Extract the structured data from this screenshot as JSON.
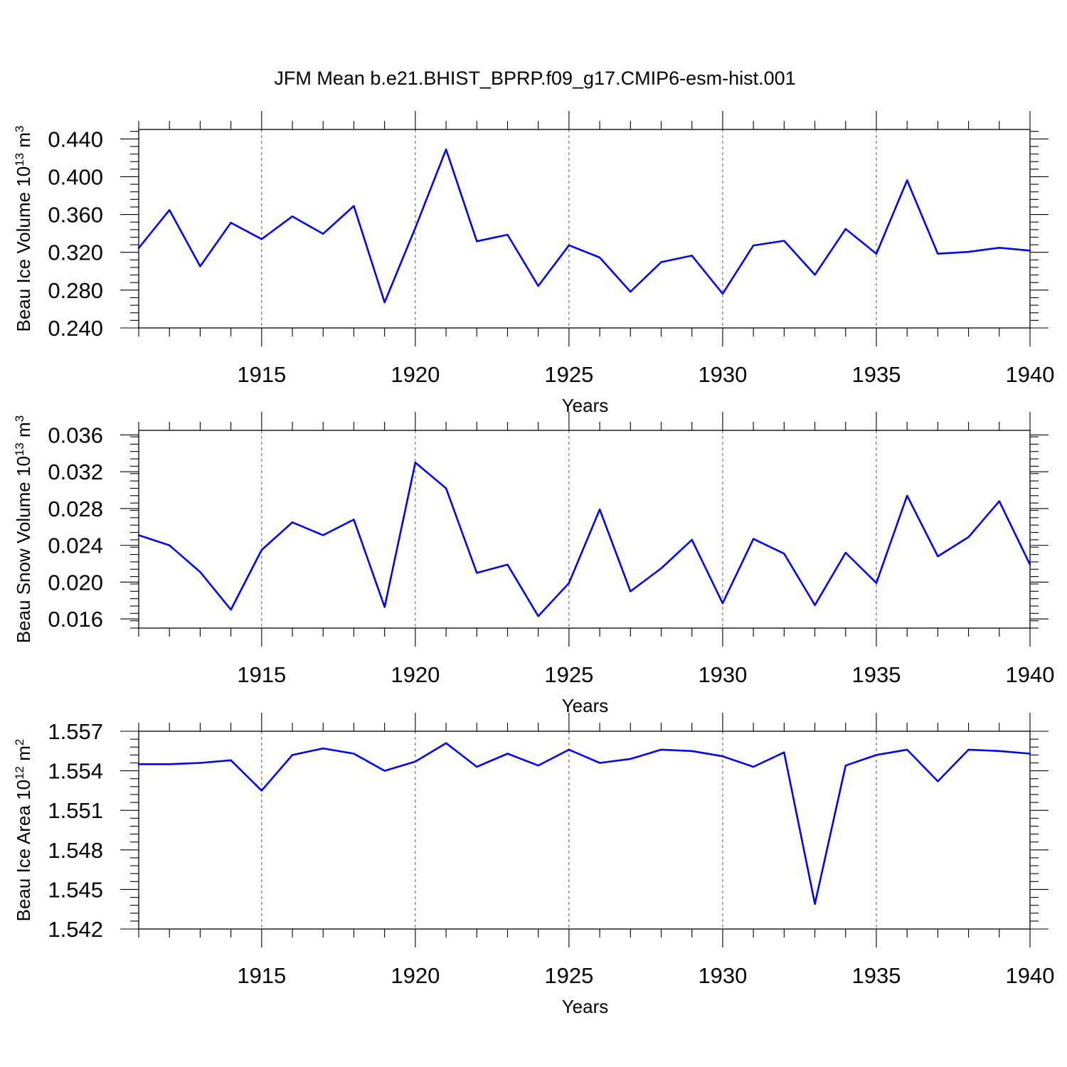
{
  "figure": {
    "title": "JFM Mean b.e21.BHIST_BPRP.f09_g17.CMIP6-esm-hist.001"
  },
  "style": {
    "line_color": "#0000ff"
  },
  "chart_data": [
    {
      "type": "line",
      "xlabel": "Years",
      "ylabel_parts": [
        "Beau Ice Volume 10",
        "13",
        " m",
        "3"
      ],
      "x": [
        1911,
        1912,
        1913,
        1914,
        1915,
        1916,
        1917,
        1918,
        1919,
        1920,
        1921,
        1922,
        1923,
        1924,
        1925,
        1926,
        1927,
        1928,
        1929,
        1930,
        1931,
        1932,
        1933,
        1934,
        1935,
        1936,
        1937,
        1938,
        1939,
        1940
      ],
      "y": [
        0.3245,
        0.3648,
        0.3052,
        0.3513,
        0.3339,
        0.358,
        0.3396,
        0.369,
        0.267,
        0.346,
        0.4289,
        0.3317,
        0.3386,
        0.2844,
        0.3275,
        0.3145,
        0.2783,
        0.3096,
        0.3165,
        0.2762,
        0.3272,
        0.3322,
        0.2962,
        0.3447,
        0.3184,
        0.3962,
        0.3185,
        0.3205,
        0.3248,
        0.3218
      ],
      "xlim": [
        1911,
        1940
      ],
      "ylim": [
        0.24,
        0.45
      ],
      "x_ticks": [
        1915,
        1920,
        1925,
        1930,
        1935,
        1940
      ],
      "x_tick_labels": [
        "1915",
        "1920",
        "1925",
        "1930",
        "1935",
        "1940"
      ],
      "x_minor": [
        1911,
        1912,
        1913,
        1914,
        1916,
        1917,
        1918,
        1919,
        1921,
        1922,
        1923,
        1924,
        1926,
        1927,
        1928,
        1929,
        1931,
        1932,
        1933,
        1934,
        1936,
        1937,
        1938,
        1939
      ],
      "y_ticks": [
        0.24,
        0.28,
        0.32,
        0.36,
        0.4,
        0.44
      ],
      "y_tick_labels": [
        "0.240",
        "0.280",
        "0.320",
        "0.360",
        "0.400",
        "0.440"
      ],
      "y_minor_step": 0.008,
      "grid_x": "dashed at major ticks"
    },
    {
      "type": "line",
      "xlabel": "Years",
      "ylabel_parts": [
        "Beau Snow Volume 10",
        "13",
        " m",
        "3"
      ],
      "x": [
        1911,
        1912,
        1913,
        1914,
        1915,
        1916,
        1917,
        1918,
        1919,
        1920,
        1921,
        1922,
        1923,
        1924,
        1925,
        1926,
        1927,
        1928,
        1929,
        1930,
        1931,
        1932,
        1933,
        1934,
        1935,
        1936,
        1937,
        1938,
        1939,
        1940
      ],
      "y": [
        0.0251,
        0.024,
        0.0211,
        0.017,
        0.0235,
        0.0265,
        0.0251,
        0.0268,
        0.0173,
        0.033,
        0.0302,
        0.021,
        0.0219,
        0.0163,
        0.0199,
        0.0279,
        0.019,
        0.0215,
        0.0246,
        0.0177,
        0.0247,
        0.0231,
        0.0175,
        0.0232,
        0.0199,
        0.0294,
        0.0228,
        0.0249,
        0.0288,
        0.0219
      ],
      "xlim": [
        1911,
        1940
      ],
      "ylim": [
        0.015,
        0.0365
      ],
      "x_ticks": [
        1915,
        1920,
        1925,
        1930,
        1935,
        1940
      ],
      "x_tick_labels": [
        "1915",
        "1920",
        "1925",
        "1930",
        "1935",
        "1940"
      ],
      "x_minor": [
        1911,
        1912,
        1913,
        1914,
        1916,
        1917,
        1918,
        1919,
        1921,
        1922,
        1923,
        1924,
        1926,
        1927,
        1928,
        1929,
        1931,
        1932,
        1933,
        1934,
        1936,
        1937,
        1938,
        1939
      ],
      "y_ticks": [
        0.016,
        0.02,
        0.024,
        0.028,
        0.032,
        0.036
      ],
      "y_tick_labels": [
        "0.016",
        "0.020",
        "0.024",
        "0.028",
        "0.032",
        "0.036"
      ],
      "y_minor_step": 0.0008,
      "grid_x": "dashed at major ticks"
    },
    {
      "type": "line",
      "xlabel": "Years",
      "ylabel_parts": [
        "Beau Ice Area 10",
        "12",
        " m",
        "2"
      ],
      "x": [
        1911,
        1912,
        1913,
        1914,
        1915,
        1916,
        1917,
        1918,
        1919,
        1920,
        1921,
        1922,
        1923,
        1924,
        1925,
        1926,
        1927,
        1928,
        1929,
        1930,
        1931,
        1932,
        1933,
        1934,
        1935,
        1936,
        1937,
        1938,
        1939,
        1940
      ],
      "y": [
        1.5545,
        1.5545,
        1.5546,
        1.5548,
        1.5525,
        1.5552,
        1.5557,
        1.5553,
        1.554,
        1.5547,
        1.5561,
        1.5543,
        1.5553,
        1.5544,
        1.5556,
        1.5546,
        1.5549,
        1.5556,
        1.5555,
        1.5551,
        1.5543,
        1.5554,
        1.5439,
        1.5544,
        1.5552,
        1.5556,
        1.5532,
        1.5556,
        1.5555,
        1.5553
      ],
      "xlim": [
        1911,
        1940
      ],
      "ylim": [
        1.542,
        1.557
      ],
      "x_ticks": [
        1915,
        1920,
        1925,
        1930,
        1935,
        1940
      ],
      "x_tick_labels": [
        "1915",
        "1920",
        "1925",
        "1930",
        "1935",
        "1940"
      ],
      "x_minor": [
        1911,
        1912,
        1913,
        1914,
        1916,
        1917,
        1918,
        1919,
        1921,
        1922,
        1923,
        1924,
        1926,
        1927,
        1928,
        1929,
        1931,
        1932,
        1933,
        1934,
        1936,
        1937,
        1938,
        1939
      ],
      "y_ticks": [
        1.542,
        1.545,
        1.548,
        1.551,
        1.554,
        1.557
      ],
      "y_tick_labels": [
        "1.542",
        "1.545",
        "1.548",
        "1.551",
        "1.554",
        "1.557"
      ],
      "y_minor_step": 0.0006,
      "grid_x": "dashed at major ticks"
    }
  ]
}
